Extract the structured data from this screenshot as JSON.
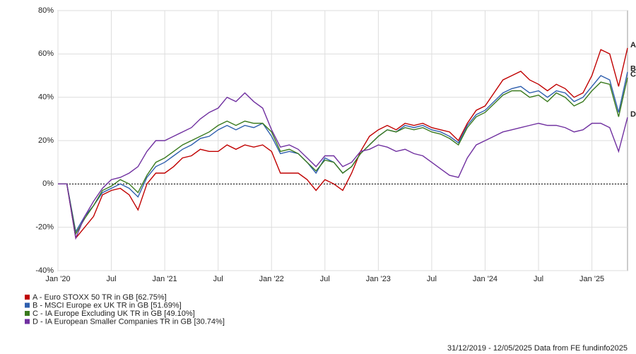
{
  "chart_data": {
    "type": "line",
    "categories": [
      "Jan '20",
      null,
      null,
      null,
      null,
      null,
      "Jul",
      null,
      null,
      null,
      null,
      null,
      "Jan '21",
      null,
      null,
      null,
      null,
      null,
      "Jul",
      null,
      null,
      null,
      null,
      null,
      "Jan '22",
      null,
      null,
      null,
      null,
      null,
      "Jul",
      null,
      null,
      null,
      null,
      null,
      "Jan '23",
      null,
      null,
      null,
      null,
      null,
      "Jul",
      null,
      null,
      null,
      null,
      null,
      "Jan '24",
      null,
      null,
      null,
      null,
      null,
      "Jul",
      null,
      null,
      null,
      null,
      null,
      "Jan '25",
      null,
      null,
      null,
      null
    ],
    "series": [
      {
        "name": "A - Euro STOXX 50 TR in GB [62.75%]",
        "end_label": "A",
        "color": "#c00000",
        "values": [
          0,
          0,
          -25,
          -20,
          -15,
          -5,
          -3,
          -2,
          -5,
          -12,
          0,
          5,
          5,
          8,
          12,
          13,
          16,
          15,
          15,
          18,
          16,
          18,
          17,
          18,
          15,
          5,
          5,
          5,
          2,
          -3,
          2,
          0,
          -3,
          5,
          15,
          22,
          25,
          27,
          25,
          28,
          27,
          28,
          26,
          25,
          24,
          20,
          28,
          34,
          36,
          42,
          48,
          50,
          52,
          48,
          46,
          43,
          46,
          44,
          40,
          42,
          50,
          62,
          60,
          45,
          62.75
        ]
      },
      {
        "name": "B - MSCI Europe ex UK TR in GB [51.69%]",
        "end_label": "B",
        "color": "#2f5fae",
        "values": [
          0,
          0,
          -22,
          -15,
          -10,
          -4,
          -2,
          0,
          -2,
          -6,
          3,
          8,
          10,
          13,
          16,
          18,
          21,
          22,
          25,
          27,
          25,
          27,
          26,
          28,
          22,
          14,
          15,
          14,
          10,
          5,
          12,
          10,
          5,
          8,
          14,
          18,
          22,
          25,
          24,
          27,
          26,
          27,
          25,
          24,
          22,
          19,
          27,
          32,
          34,
          38,
          42,
          44,
          45,
          42,
          43,
          40,
          43,
          42,
          38,
          40,
          45,
          50,
          48,
          33,
          51.69
        ]
      },
      {
        "name": "C - IA Europe Excluding UK TR in GB [49.10%]",
        "end_label": "C",
        "color": "#3a7a1e",
        "values": [
          0,
          0,
          -23,
          -16,
          -10,
          -3,
          -1,
          2,
          0,
          -4,
          4,
          10,
          12,
          15,
          18,
          20,
          22,
          24,
          27,
          29,
          27,
          29,
          28,
          28,
          24,
          15,
          16,
          14,
          10,
          6,
          11,
          10,
          5,
          8,
          14,
          18,
          22,
          25,
          24,
          26,
          25,
          26,
          24,
          23,
          21,
          18,
          26,
          31,
          33,
          37,
          41,
          43,
          43,
          40,
          41,
          38,
          42,
          40,
          36,
          38,
          43,
          47,
          46,
          31,
          49.1
        ]
      },
      {
        "name": "D - IA European Smaller Companies TR in GB [30.74%]",
        "end_label": "D",
        "color": "#7030a0",
        "values": [
          0,
          0,
          -25,
          -15,
          -8,
          -2,
          2,
          3,
          5,
          8,
          15,
          20,
          20,
          22,
          24,
          26,
          30,
          33,
          35,
          40,
          38,
          42,
          38,
          35,
          25,
          17,
          18,
          16,
          12,
          8,
          13,
          13,
          8,
          10,
          15,
          16,
          18,
          17,
          15,
          16,
          14,
          13,
          10,
          7,
          4,
          3,
          12,
          18,
          20,
          22,
          24,
          25,
          26,
          27,
          28,
          27,
          27,
          26,
          24,
          25,
          28,
          28,
          26,
          15,
          30.74
        ]
      }
    ],
    "ylim": [
      -40,
      80
    ],
    "yticks": [
      {
        "value": -40,
        "label": "-40%"
      },
      {
        "value": -20,
        "label": "-20%"
      },
      {
        "value": 0,
        "label": "0%"
      },
      {
        "value": 20,
        "label": "20%"
      },
      {
        "value": 40,
        "label": "40%"
      },
      {
        "value": 60,
        "label": "60%"
      },
      {
        "value": 80,
        "label": "80%"
      }
    ],
    "grid": true,
    "zero_line": true,
    "footer": "31/12/2019 - 12/05/2025 Data from FE fundinfo2025"
  }
}
